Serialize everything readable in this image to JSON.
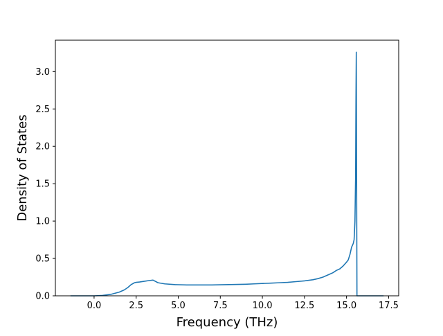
{
  "chart_data": {
    "type": "line",
    "title": "",
    "xlabel": "Frequency (THz)",
    "ylabel": "Density of States",
    "xlim": [
      -2.3,
      18.1
    ],
    "ylim": [
      0.0,
      3.42
    ],
    "x_ticks": [
      0.0,
      2.5,
      5.0,
      7.5,
      10.0,
      12.5,
      15.0,
      17.5
    ],
    "x_tick_labels": [
      "0.0",
      "2.5",
      "5.0",
      "7.5",
      "10.0",
      "12.5",
      "15.0",
      "17.5"
    ],
    "y_ticks": [
      0.0,
      0.5,
      1.0,
      1.5,
      2.0,
      2.5,
      3.0
    ],
    "y_tick_labels": [
      "0.0",
      "0.5",
      "1.0",
      "1.5",
      "2.0",
      "2.5",
      "3.0"
    ],
    "grid": false,
    "legend": "none",
    "series": [
      {
        "color": "#1f77b4",
        "x": [
          -1.4,
          -0.5,
          0.0,
          0.5,
          1.0,
          1.5,
          1.8,
          2.0,
          2.2,
          2.4,
          2.5,
          2.7,
          3.0,
          3.3,
          3.5,
          3.8,
          4.2,
          4.8,
          5.5,
          6.5,
          7.0,
          7.5,
          8.0,
          8.5,
          9.0,
          9.5,
          10.0,
          10.5,
          11.0,
          11.5,
          12.0,
          12.5,
          13.0,
          13.3,
          13.6,
          13.8,
          14.0,
          14.2,
          14.4,
          14.6,
          14.8,
          15.0,
          15.1,
          15.2,
          15.3,
          15.4,
          15.45,
          15.5,
          15.52,
          15.54,
          15.56,
          15.58,
          15.6,
          15.62,
          15.7,
          17.2
        ],
        "values": [
          0.0,
          0.0,
          0.0,
          0.005,
          0.02,
          0.05,
          0.08,
          0.11,
          0.15,
          0.175,
          0.18,
          0.185,
          0.195,
          0.205,
          0.21,
          0.175,
          0.16,
          0.15,
          0.145,
          0.145,
          0.145,
          0.148,
          0.15,
          0.152,
          0.155,
          0.16,
          0.165,
          0.17,
          0.175,
          0.18,
          0.19,
          0.2,
          0.215,
          0.23,
          0.25,
          0.27,
          0.29,
          0.31,
          0.34,
          0.36,
          0.4,
          0.45,
          0.48,
          0.55,
          0.65,
          0.7,
          0.75,
          1.0,
          1.3,
          1.6,
          2.6,
          3.26,
          1.5,
          0.0,
          0.0,
          0.0
        ]
      }
    ]
  }
}
